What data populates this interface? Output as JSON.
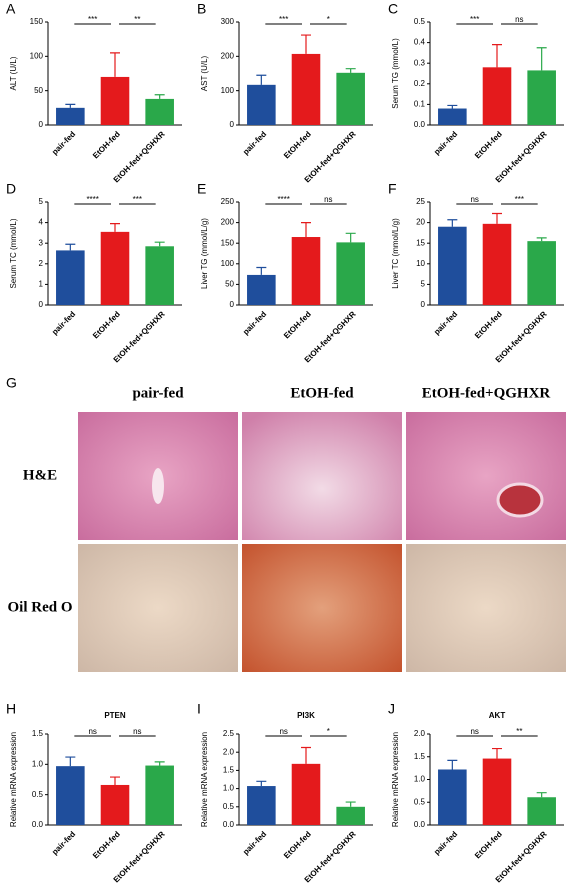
{
  "chart_data": [
    {
      "type": "bar",
      "label": "A",
      "ylabel": "ALT (U/L)",
      "categories": [
        "pair-fed",
        "EtOH-fed",
        "EtOH-fed+QGHXR"
      ],
      "values": [
        25,
        70,
        38
      ],
      "errors": [
        5,
        35,
        6
      ],
      "colors": [
        "#1f4e9c",
        "#e41a1c",
        "#2aa84a"
      ],
      "ylim": [
        0,
        150
      ],
      "yticks": [
        0,
        50,
        100,
        150
      ],
      "annotations": [
        "***",
        "**"
      ]
    },
    {
      "type": "bar",
      "label": "B",
      "ylabel": "AST (U/L)",
      "categories": [
        "pair-fed",
        "EtOH-fed",
        "EtOH-fed+QGHXR"
      ],
      "values": [
        117,
        207,
        152
      ],
      "errors": [
        28,
        55,
        12
      ],
      "colors": [
        "#1f4e9c",
        "#e41a1c",
        "#2aa84a"
      ],
      "ylim": [
        0,
        300
      ],
      "yticks": [
        0,
        100,
        200,
        300
      ],
      "annotations": [
        "***",
        "*"
      ]
    },
    {
      "type": "bar",
      "label": "C",
      "ylabel": "Serum TG (mmol/L)",
      "categories": [
        "pair-fed",
        "EtOH-fed",
        "EtOH-fed+QGHXR"
      ],
      "values": [
        0.08,
        0.28,
        0.265
      ],
      "errors": [
        0.015,
        0.11,
        0.11
      ],
      "colors": [
        "#1f4e9c",
        "#e41a1c",
        "#2aa84a"
      ],
      "ylim": [
        0,
        0.5
      ],
      "yticks": [
        {
          "value": 0,
          "label": "0.0"
        },
        0.1,
        0.2,
        0.3,
        0.4,
        0.5
      ],
      "annotations": [
        "***",
        "ns"
      ]
    },
    {
      "type": "bar",
      "label": "D",
      "ylabel": "Serum TC (mmol/L)",
      "categories": [
        "pair-fed",
        "EtOH-fed",
        "EtOH-fed+QGHXR"
      ],
      "values": [
        2.65,
        3.55,
        2.85
      ],
      "errors": [
        0.3,
        0.4,
        0.2
      ],
      "colors": [
        "#1f4e9c",
        "#e41a1c",
        "#2aa84a"
      ],
      "ylim": [
        0,
        5
      ],
      "yticks": [
        0,
        1,
        2,
        3,
        4,
        5
      ],
      "annotations": [
        "****",
        "***"
      ]
    },
    {
      "type": "bar",
      "label": "E",
      "ylabel": "Liver TG (mmol/L/g)",
      "categories": [
        "pair-fed",
        "EtOH-fed",
        "EtOH-fed+QGHXR"
      ],
      "values": [
        73,
        165,
        152
      ],
      "errors": [
        18,
        35,
        22
      ],
      "colors": [
        "#1f4e9c",
        "#e41a1c",
        "#2aa84a"
      ],
      "ylim": [
        0,
        250
      ],
      "yticks": [
        0,
        50,
        100,
        150,
        200,
        250
      ],
      "annotations": [
        "****",
        "ns"
      ]
    },
    {
      "type": "bar",
      "label": "F",
      "ylabel": "Liver TC (mmol/L/g)",
      "categories": [
        "pair-fed",
        "EtOH-fed",
        "EtOH-fed+QGHXR"
      ],
      "values": [
        19,
        19.7,
        15.5
      ],
      "errors": [
        1.7,
        2.5,
        0.8
      ],
      "colors": [
        "#1f4e9c",
        "#e41a1c",
        "#2aa84a"
      ],
      "ylim": [
        0,
        25
      ],
      "yticks": [
        0,
        5,
        10,
        15,
        20,
        25
      ],
      "annotations": [
        "ns",
        "***"
      ]
    },
    {
      "type": "bar",
      "label": "H",
      "title": "PTEN",
      "ylabel": "Relative mRNA expression",
      "categories": [
        "pair-fed",
        "EtOH-fed",
        "EtOH-fed+QGHXR"
      ],
      "values": [
        0.97,
        0.66,
        0.98
      ],
      "errors": [
        0.15,
        0.13,
        0.06
      ],
      "colors": [
        "#1f4e9c",
        "#e41a1c",
        "#2aa84a"
      ],
      "ylim": [
        0,
        1.5
      ],
      "yticks": [
        {
          "value": 0,
          "label": "0.0"
        },
        0.5,
        {
          "value": 1,
          "label": "1.0"
        },
        1.5
      ],
      "annotations": [
        "ns",
        "ns"
      ]
    },
    {
      "type": "bar",
      "label": "I",
      "title": "PI3K",
      "ylabel": "Relative mRNA expression",
      "categories": [
        "pair-fed",
        "EtOH-fed",
        "EtOH-fed+QGHXR"
      ],
      "values": [
        1.07,
        1.68,
        0.5
      ],
      "errors": [
        0.13,
        0.45,
        0.13
      ],
      "colors": [
        "#1f4e9c",
        "#e41a1c",
        "#2aa84a"
      ],
      "ylim": [
        0,
        2.5
      ],
      "yticks": [
        {
          "value": 0,
          "label": "0.0"
        },
        0.5,
        {
          "value": 1,
          "label": "1.0"
        },
        1.5,
        {
          "value": 2,
          "label": "2.0"
        },
        2.5
      ],
      "annotations": [
        "ns",
        "*"
      ]
    },
    {
      "type": "bar",
      "label": "J",
      "title": "AKT",
      "ylabel": "Relative mRNA expression",
      "categories": [
        "pair-fed",
        "EtOH-fed",
        "EtOH-fed+QGHXR"
      ],
      "values": [
        1.22,
        1.46,
        0.61
      ],
      "errors": [
        0.2,
        0.22,
        0.1
      ],
      "colors": [
        "#1f4e9c",
        "#e41a1c",
        "#2aa84a"
      ],
      "ylim": [
        0,
        2.0
      ],
      "yticks": [
        {
          "value": 0,
          "label": "0.0"
        },
        0.5,
        {
          "value": 1,
          "label": "1.0"
        },
        1.5,
        {
          "value": 2,
          "label": "2.0"
        }
      ],
      "annotations": [
        "ns",
        "**"
      ]
    }
  ],
  "histology": {
    "label": "G",
    "columns": [
      "pair-fed",
      "EtOH-fed",
      "EtOH-fed+QGHXR"
    ],
    "rows": [
      "H&E",
      "Oil Red O"
    ]
  }
}
